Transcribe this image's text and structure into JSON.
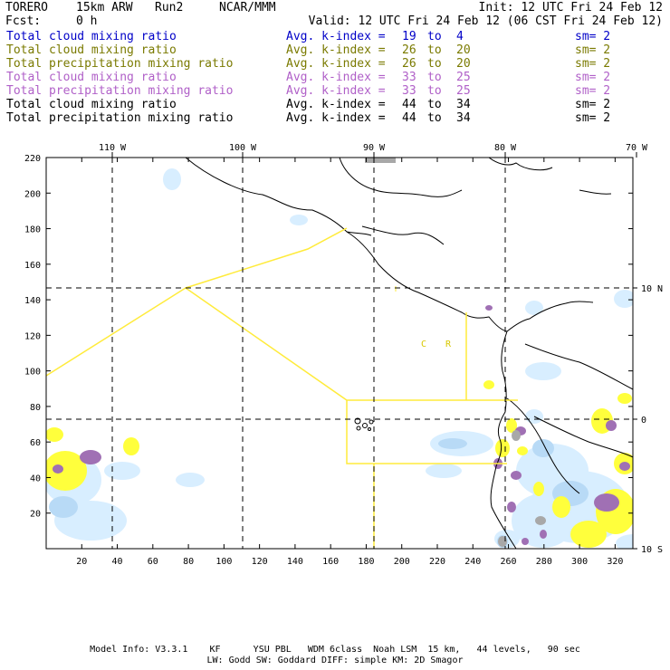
{
  "header": {
    "model": "TORERO",
    "resolution": "15km ARW",
    "run": "Run2",
    "org": "NCAR/MMM",
    "init": "Init: 12 UTC Fri 24 Feb 12",
    "fcst_label": "Fcst:",
    "fcst_value": "0 h",
    "valid": "Valid: 12 UTC Fri 24 Feb 12 (06 CST Fri 24 Feb 12)"
  },
  "legend": [
    {
      "field": "Total cloud mixing ratio",
      "avg": "Avg. k-index =",
      "v1": "19",
      "to": "to",
      "v2": "4",
      "sm": "sm= 2",
      "color": "#0000c8"
    },
    {
      "field": "Total cloud mixing ratio",
      "avg": "Avg. k-index =",
      "v1": "26",
      "to": "to",
      "v2": "20",
      "sm": "sm= 2",
      "color": "#7a7a00"
    },
    {
      "field": "Total precipitation mixing ratio",
      "avg": "Avg. k-index =",
      "v1": "26",
      "to": "to",
      "v2": "20",
      "sm": "sm= 2",
      "color": "#7a7a00"
    },
    {
      "field": "Total cloud mixing ratio",
      "avg": "Avg. k-index =",
      "v1": "33",
      "to": "to",
      "v2": "25",
      "sm": "sm= 2",
      "color": "#b060c8"
    },
    {
      "field": "Total precipitation mixing ratio",
      "avg": "Avg. k-index =",
      "v1": "33",
      "to": "to",
      "v2": "25",
      "sm": "sm= 2",
      "color": "#b060c8"
    },
    {
      "field": "Total cloud mixing ratio",
      "avg": "Avg. k-index =",
      "v1": "44",
      "to": "to",
      "v2": "34",
      "sm": "sm= 2",
      "color": "#000000"
    },
    {
      "field": "Total precipitation mixing ratio",
      "avg": "Avg. k-index =",
      "v1": "44",
      "to": "to",
      "v2": "34",
      "sm": "sm= 2",
      "color": "#000000"
    }
  ],
  "map": {
    "lon_labels": [
      "110 W",
      "100 W",
      "90 W",
      "80 W",
      "70 W"
    ],
    "lat_labels": [
      "10 N",
      "0",
      "10 S"
    ],
    "y_ticks": [
      "220",
      "200",
      "180",
      "160",
      "140",
      "120",
      "100",
      "80",
      "60",
      "40",
      "20"
    ],
    "x_ticks": [
      "20",
      "40",
      "60",
      "80",
      "100",
      "120",
      "140",
      "160",
      "180",
      "200",
      "220",
      "240",
      "260",
      "280",
      "300",
      "320"
    ],
    "domain_labels": [
      "C",
      "R"
    ],
    "colors": {
      "cloud_low": "#d8eeff",
      "cloud_mid": "#b8daf6",
      "yellow": "#ffff3c",
      "purple": "#a070b4",
      "gray": "#a8a8a8",
      "domain": "#ffeb3b"
    }
  },
  "footer": {
    "line1": "Model Info: V3.3.1    KF      YSU PBL   WDM 6class  Noah LSM  15 km,   44 levels,   90 sec",
    "line2": "LW: Godd SW: Goddard DIFF: simple KM: 2D Smagor"
  }
}
